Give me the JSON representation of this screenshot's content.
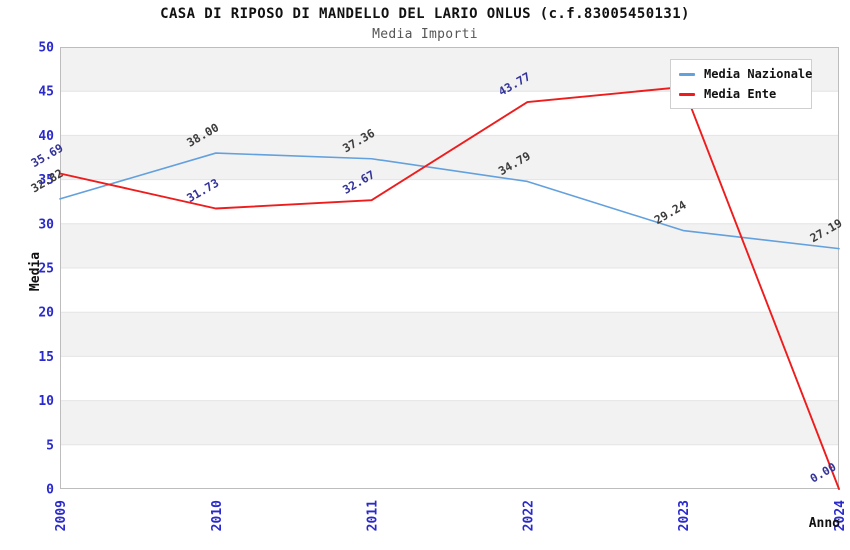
{
  "header": {
    "title": "CASA DI RIPOSO DI MANDELLO DEL LARIO ONLUS (c.f.83005450131)",
    "subtitle": "Media Importi"
  },
  "chart_data": {
    "type": "line",
    "title": "CASA DI RIPOSO DI MANDELLO DEL LARIO ONLUS (c.f.83005450131)",
    "subtitle": "Media Importi",
    "categories": [
      "2009",
      "2010",
      "2011",
      "2022",
      "2023",
      "2024"
    ],
    "series": [
      {
        "name": "Media Nazionale",
        "color": "#63A0DE",
        "label_color": "#3C3C3C",
        "values": [
          32.82,
          38.0,
          37.36,
          34.79,
          29.24,
          27.19
        ],
        "labels": [
          "32.82",
          "38.00",
          "37.36",
          "34.79",
          "29.24",
          "27.19"
        ]
      },
      {
        "name": "Media Ente",
        "color": "#EE1C1C",
        "label_color": "#333399",
        "values": [
          35.69,
          31.73,
          32.67,
          43.77,
          45.48,
          0.0
        ],
        "labels": [
          "35.69",
          "31.73",
          "32.67",
          "43.77",
          null,
          "0.00"
        ]
      }
    ],
    "xlabel": "Anno",
    "ylabel": "Media",
    "ylim": [
      0,
      50
    ],
    "ytick_step": 5,
    "yticks": [
      "0",
      "5",
      "10",
      "15",
      "20",
      "25",
      "30",
      "35",
      "40",
      "45",
      "50"
    ],
    "grid": "alternating-bands",
    "legend_position": "top-right"
  },
  "colors": {
    "tick_label": "#2A2ACC",
    "band": "#F2F2F2",
    "gridline": "#E4E4E4",
    "plot_border": "#BDBDBD",
    "background": "#FFFFFF",
    "title": "#111111",
    "subtitle": "#555555"
  }
}
